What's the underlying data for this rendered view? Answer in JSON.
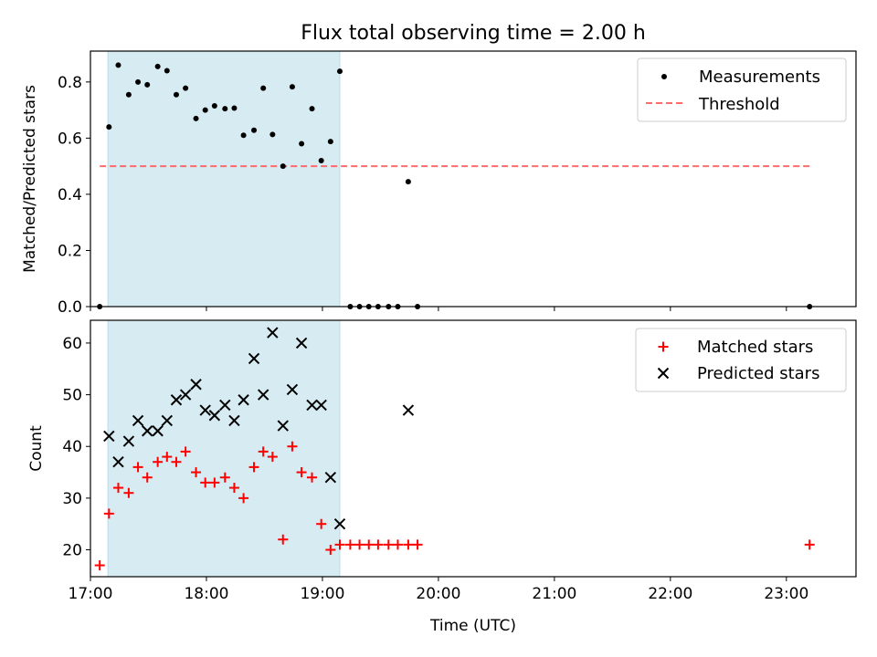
{
  "chart_data": [
    {
      "type": "scatter",
      "title": "Flux total observing time = 2.00 h",
      "xlabel": "",
      "ylabel": "Matched/Predicted stars",
      "xlim": [
        17.0,
        23.6
      ],
      "ylim": [
        0.0,
        0.91
      ],
      "y_ticks": [
        0.0,
        0.2,
        0.4,
        0.6,
        0.8
      ],
      "y_tick_labels": [
        "0.0",
        "0.2",
        "0.4",
        "0.6",
        "0.8"
      ],
      "x_ticks": [
        17,
        18,
        19,
        20,
        21,
        22,
        23
      ],
      "shaded_span": [
        17.15,
        19.15
      ],
      "shaded_color": "#add8e6",
      "legend_position": "upper right",
      "threshold": {
        "name": "Threshold",
        "value": 0.5,
        "x_range": [
          17.08,
          23.2
        ],
        "color": "#ff6b6b",
        "style": "dashed"
      },
      "series": [
        {
          "name": "Measurements",
          "marker": "dot",
          "color": "#000000",
          "points": [
            [
              17.08,
              0.0
            ],
            [
              17.16,
              0.64
            ],
            [
              17.24,
              0.86
            ],
            [
              17.33,
              0.755
            ],
            [
              17.41,
              0.8
            ],
            [
              17.49,
              0.79
            ],
            [
              17.58,
              0.855
            ],
            [
              17.66,
              0.84
            ],
            [
              17.74,
              0.755
            ],
            [
              17.82,
              0.778
            ],
            [
              17.91,
              0.67
            ],
            [
              17.99,
              0.7
            ],
            [
              18.07,
              0.715
            ],
            [
              18.16,
              0.705
            ],
            [
              18.24,
              0.707
            ],
            [
              18.32,
              0.61
            ],
            [
              18.41,
              0.628
            ],
            [
              18.49,
              0.778
            ],
            [
              18.57,
              0.613
            ],
            [
              18.66,
              0.5
            ],
            [
              18.74,
              0.783
            ],
            [
              18.82,
              0.58
            ],
            [
              18.91,
              0.705
            ],
            [
              18.99,
              0.52
            ],
            [
              19.07,
              0.588
            ],
            [
              19.15,
              0.838
            ],
            [
              19.24,
              0.0
            ],
            [
              19.32,
              0.0
            ],
            [
              19.4,
              0.0
            ],
            [
              19.48,
              0.0
            ],
            [
              19.57,
              0.0
            ],
            [
              19.65,
              0.0
            ],
            [
              19.74,
              0.445
            ],
            [
              19.82,
              0.0
            ],
            [
              23.2,
              0.0
            ]
          ]
        }
      ]
    },
    {
      "type": "scatter",
      "title": "",
      "xlabel": "Time (UTC)",
      "ylabel": "Count",
      "xlim": [
        17.0,
        23.6
      ],
      "ylim": [
        14.8,
        64.4
      ],
      "y_ticks": [
        20,
        30,
        40,
        50,
        60
      ],
      "y_tick_labels": [
        "20",
        "30",
        "40",
        "50",
        "60"
      ],
      "x_ticks": [
        17,
        18,
        19,
        20,
        21,
        22,
        23
      ],
      "x_tick_labels": [
        "17:00",
        "18:00",
        "19:00",
        "20:00",
        "21:00",
        "22:00",
        "23:00"
      ],
      "shaded_span": [
        17.15,
        19.15
      ],
      "shaded_color": "#add8e6",
      "legend_position": "upper right",
      "series": [
        {
          "name": "Matched stars",
          "marker": "plus",
          "color": "#ff0000",
          "points": [
            [
              17.08,
              17
            ],
            [
              17.16,
              27
            ],
            [
              17.24,
              32
            ],
            [
              17.33,
              31
            ],
            [
              17.41,
              36
            ],
            [
              17.49,
              34
            ],
            [
              17.58,
              37
            ],
            [
              17.66,
              38
            ],
            [
              17.74,
              37
            ],
            [
              17.82,
              39
            ],
            [
              17.91,
              35
            ],
            [
              17.99,
              33
            ],
            [
              18.07,
              33
            ],
            [
              18.16,
              34
            ],
            [
              18.24,
              32
            ],
            [
              18.32,
              30
            ],
            [
              18.41,
              36
            ],
            [
              18.49,
              39
            ],
            [
              18.57,
              38
            ],
            [
              18.66,
              22
            ],
            [
              18.74,
              40
            ],
            [
              18.82,
              35
            ],
            [
              18.91,
              34
            ],
            [
              18.99,
              25
            ],
            [
              19.07,
              20
            ],
            [
              19.15,
              21
            ],
            [
              19.24,
              21
            ],
            [
              19.32,
              21
            ],
            [
              19.4,
              21
            ],
            [
              19.48,
              21
            ],
            [
              19.57,
              21
            ],
            [
              19.65,
              21
            ],
            [
              19.74,
              21
            ],
            [
              19.82,
              21
            ],
            [
              23.2,
              21
            ]
          ]
        },
        {
          "name": "Predicted stars",
          "marker": "x",
          "color": "#000000",
          "points": [
            [
              17.16,
              42
            ],
            [
              17.24,
              37
            ],
            [
              17.33,
              41
            ],
            [
              17.41,
              45
            ],
            [
              17.49,
              43
            ],
            [
              17.58,
              43
            ],
            [
              17.66,
              45
            ],
            [
              17.74,
              49
            ],
            [
              17.82,
              50
            ],
            [
              17.91,
              52
            ],
            [
              17.99,
              47
            ],
            [
              18.07,
              46
            ],
            [
              18.16,
              48
            ],
            [
              18.24,
              45
            ],
            [
              18.32,
              49
            ],
            [
              18.41,
              57
            ],
            [
              18.49,
              50
            ],
            [
              18.57,
              62
            ],
            [
              18.66,
              44
            ],
            [
              18.74,
              51
            ],
            [
              18.82,
              60
            ],
            [
              18.91,
              48
            ],
            [
              18.99,
              48
            ],
            [
              19.07,
              34
            ],
            [
              19.15,
              25
            ],
            [
              19.74,
              47
            ]
          ]
        }
      ]
    }
  ]
}
